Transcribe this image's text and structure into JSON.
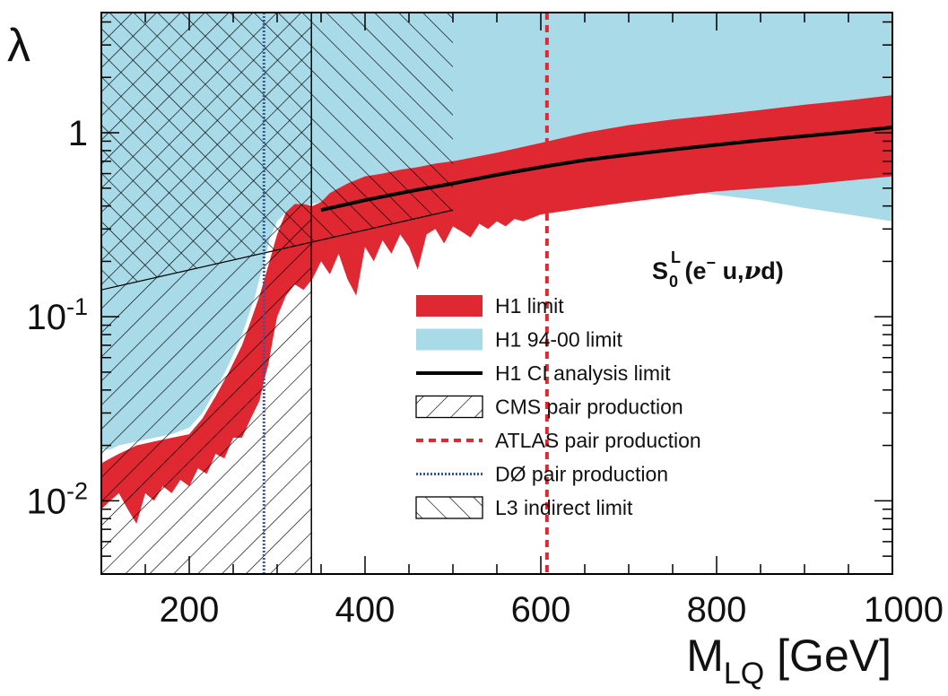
{
  "chart_data": {
    "type": "area",
    "title": "",
    "xlabel": "M",
    "xlabel_sub": "LQ",
    "xlabel_unit": "[GeV]",
    "ylabel": "λ",
    "xlim": [
      100,
      1000
    ],
    "ylim": [
      0.004,
      4.5
    ],
    "yscale": "log",
    "x_ticks": [
      {
        "v": 200,
        "label": "200"
      },
      {
        "v": 400,
        "label": "400"
      },
      {
        "v": 600,
        "label": "600"
      },
      {
        "v": 800,
        "label": "800"
      },
      {
        "v": 1000,
        "label": "1000"
      }
    ],
    "y_ticks": [
      {
        "v": 1,
        "base": "1",
        "exp": ""
      },
      {
        "v": 0.1,
        "base": "10",
        "exp": "-1"
      },
      {
        "v": 0.01,
        "base": "10",
        "exp": "-2"
      }
    ],
    "annotation": {
      "S": "S",
      "sub": "0",
      "sup": "L",
      "text_before": " (e",
      "minus": "−",
      "text_after": " u,",
      "nu": "ν",
      "text_end": "d)"
    },
    "legend": [
      {
        "key": "h1",
        "label": "H1 limit"
      },
      {
        "key": "h1old",
        "label": "H1 94-00 limit"
      },
      {
        "key": "ci",
        "label": "H1 CI analysis limit"
      },
      {
        "key": "cms",
        "label": "CMS pair production"
      },
      {
        "key": "atlas",
        "label": "ATLAS pair production"
      },
      {
        "key": "d0",
        "label": "DØ pair production"
      },
      {
        "key": "l3",
        "label": "L3 indirect limit"
      }
    ],
    "colors": {
      "h1": "#e02832",
      "h1old": "#a8dae8",
      "ci": "#000000",
      "atlas": "#e02832",
      "d0": "#3355aa",
      "hatch": "#000000"
    },
    "series": {
      "h1old_lower": {
        "x": [
          100,
          110,
          120,
          140,
          160,
          180,
          200,
          215,
          230,
          245,
          260,
          275,
          285,
          292,
          300,
          310,
          320,
          330,
          340,
          350,
          360,
          380,
          400,
          420,
          440,
          460,
          480,
          500,
          550,
          600,
          650,
          700,
          750,
          800,
          850,
          900,
          950,
          1000
        ],
        "y": [
          0.019,
          0.019,
          0.02,
          0.021,
          0.022,
          0.023,
          0.025,
          0.03,
          0.04,
          0.055,
          0.08,
          0.13,
          0.2,
          0.27,
          0.33,
          0.37,
          0.39,
          0.4,
          0.41,
          0.42,
          0.43,
          0.45,
          0.46,
          0.47,
          0.48,
          0.49,
          0.5,
          0.51,
          0.52,
          0.53,
          0.53,
          0.52,
          0.49,
          0.46,
          0.43,
          0.39,
          0.36,
          0.33
        ]
      },
      "h1_upper": {
        "x": [
          100,
          110,
          120,
          140,
          160,
          180,
          200,
          215,
          230,
          245,
          260,
          270,
          280,
          290,
          300,
          310,
          320,
          330,
          340,
          350,
          360,
          380,
          400,
          420,
          440,
          460,
          480,
          500,
          550,
          600,
          650,
          700,
          750,
          800,
          850,
          900,
          950,
          1000
        ],
        "y": [
          0.016,
          0.017,
          0.018,
          0.02,
          0.021,
          0.022,
          0.023,
          0.028,
          0.037,
          0.05,
          0.07,
          0.095,
          0.13,
          0.19,
          0.28,
          0.37,
          0.41,
          0.41,
          0.4,
          0.42,
          0.47,
          0.53,
          0.58,
          0.6,
          0.63,
          0.65,
          0.68,
          0.7,
          0.78,
          0.88,
          1.0,
          1.1,
          1.18,
          1.25,
          1.33,
          1.42,
          1.5,
          1.6
        ]
      },
      "h1_lower": {
        "x": [
          100,
          110,
          120,
          130,
          140,
          150,
          160,
          170,
          180,
          190,
          200,
          210,
          220,
          230,
          240,
          250,
          260,
          270,
          280,
          285,
          290,
          295,
          300,
          310,
          320,
          330,
          340,
          350,
          360,
          370,
          380,
          390,
          400,
          410,
          420,
          430,
          440,
          450,
          460,
          470,
          480,
          490,
          500,
          510,
          520,
          530,
          540,
          550,
          560,
          570,
          580,
          600,
          650,
          700,
          750,
          800,
          850,
          900,
          950,
          1000
        ],
        "y": [
          0.009,
          0.01,
          0.011,
          0.009,
          0.0075,
          0.011,
          0.01,
          0.012,
          0.011,
          0.013,
          0.012,
          0.015,
          0.014,
          0.018,
          0.017,
          0.022,
          0.022,
          0.028,
          0.035,
          0.045,
          0.055,
          0.075,
          0.1,
          0.13,
          0.15,
          0.14,
          0.16,
          0.2,
          0.17,
          0.22,
          0.16,
          0.13,
          0.24,
          0.2,
          0.26,
          0.22,
          0.28,
          0.24,
          0.18,
          0.28,
          0.3,
          0.25,
          0.31,
          0.29,
          0.27,
          0.32,
          0.3,
          0.33,
          0.31,
          0.34,
          0.33,
          0.36,
          0.39,
          0.42,
          0.45,
          0.48,
          0.5,
          0.52,
          0.55,
          0.58
        ]
      },
      "ci": {
        "x": [
          350,
          400,
          450,
          500,
          550,
          600,
          650,
          700,
          750,
          800,
          850,
          900,
          950,
          1000
        ],
        "y": [
          0.38,
          0.43,
          0.48,
          0.53,
          0.59,
          0.65,
          0.71,
          0.76,
          0.81,
          0.86,
          0.91,
          0.96,
          1.01,
          1.07
        ]
      },
      "cms_x": 339,
      "atlas_x": 607,
      "d0_x": 285,
      "l3_line": {
        "x": [
          100,
          500
        ],
        "y": [
          0.14,
          0.38
        ]
      },
      "l3_xmax": 500
    }
  }
}
